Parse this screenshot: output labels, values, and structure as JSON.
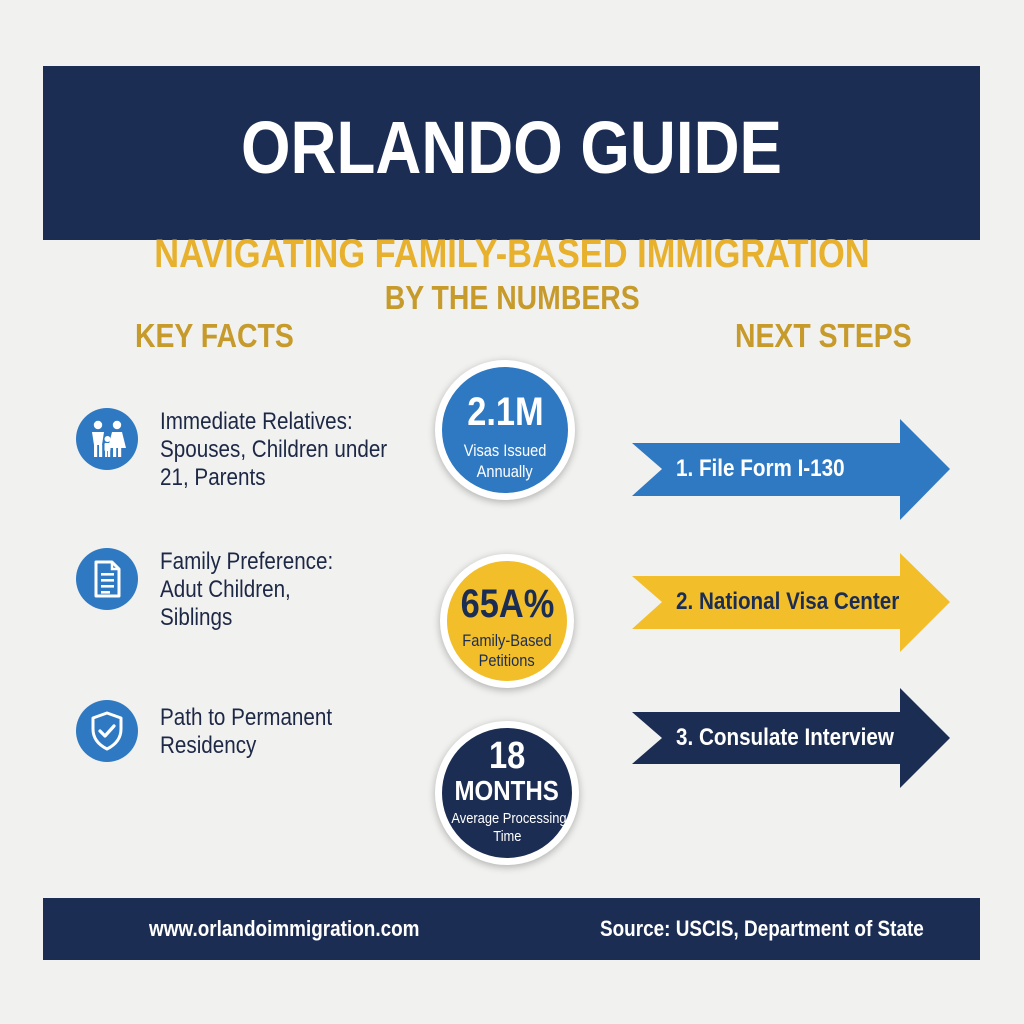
{
  "header": {
    "title": "ORLANDO GUIDE",
    "subtitle": "NAVIGATING FAMILY-BASED IMMIGRATION"
  },
  "headings": {
    "numbers": "BY THE NUMBERS",
    "facts": "KEY FACTS",
    "steps": "NEXT STEPS"
  },
  "facts": [
    {
      "icon": "family-icon",
      "lines": [
        "Immediate Relatives:",
        "Spouses, Children under",
        "21, Parents"
      ]
    },
    {
      "icon": "document-icon",
      "lines": [
        "Family Preference:",
        "Adut Children,",
        "Siblings"
      ]
    },
    {
      "icon": "shield-check-icon",
      "lines": [
        "Path to Permanent",
        "Residency"
      ]
    }
  ],
  "stats": [
    {
      "value": "2.1M",
      "caption": [
        "Visas Issued",
        "Annually"
      ],
      "color": "#2f79c2"
    },
    {
      "value": "65A%",
      "caption": [
        "Family-Based",
        "Petitions"
      ],
      "color": "#f2bf2a"
    },
    {
      "value": "18",
      "unit": "MONTHS",
      "caption": [
        "Average Processing",
        "Time"
      ],
      "color": "#1c2d54"
    }
  ],
  "steps": [
    {
      "label": "1. File Form I-130",
      "color": "#2f79c2"
    },
    {
      "label": "2. National Visa Center",
      "color": "#f2bf2a"
    },
    {
      "label": "3. Consulate Interview",
      "color": "#1c2d54"
    }
  ],
  "footer": {
    "website": "www.orlandoimmigration.com",
    "source": "Source: USCIS, Department of State"
  }
}
